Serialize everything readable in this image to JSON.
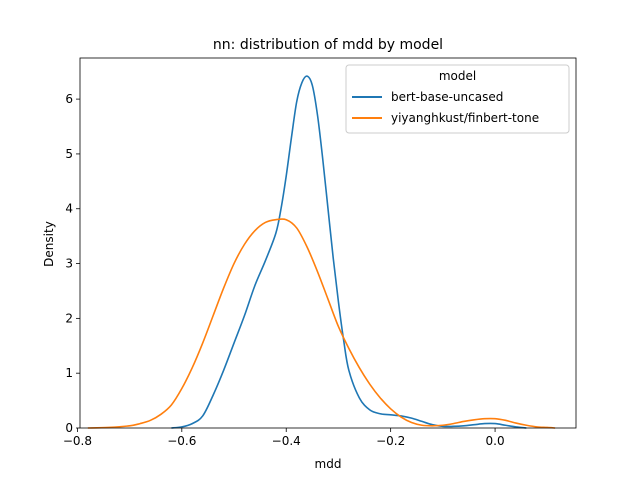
{
  "chart_data": {
    "type": "line",
    "title": "nn: distribution of mdd by model",
    "xlabel": "mdd",
    "ylabel": "Density",
    "xlim": [
      -0.795,
      0.155
    ],
    "ylim": [
      0,
      6.75
    ],
    "xticks": [
      -0.8,
      -0.6,
      -0.4,
      -0.2,
      0.0
    ],
    "xtick_labels": [
      "−0.8",
      "−0.6",
      "−0.4",
      "−0.2",
      "0.0"
    ],
    "yticks": [
      0,
      1,
      2,
      3,
      4,
      5,
      6
    ],
    "ytick_labels": [
      "0",
      "1",
      "2",
      "3",
      "4",
      "5",
      "6"
    ],
    "grid": false,
    "legend": {
      "title": "model",
      "placement": "top-right"
    },
    "series": [
      {
        "name": "bert-base-uncased",
        "color": "#1f77b4",
        "points": [
          [
            -0.62,
            0.0
          ],
          [
            -0.6,
            0.02
          ],
          [
            -0.58,
            0.08
          ],
          [
            -0.56,
            0.22
          ],
          [
            -0.54,
            0.6
          ],
          [
            -0.52,
            1.05
          ],
          [
            -0.5,
            1.55
          ],
          [
            -0.48,
            2.05
          ],
          [
            -0.46,
            2.6
          ],
          [
            -0.44,
            3.05
          ],
          [
            -0.42,
            3.55
          ],
          [
            -0.41,
            4.0
          ],
          [
            -0.4,
            4.6
          ],
          [
            -0.39,
            5.3
          ],
          [
            -0.38,
            5.95
          ],
          [
            -0.37,
            6.3
          ],
          [
            -0.36,
            6.42
          ],
          [
            -0.35,
            6.25
          ],
          [
            -0.34,
            5.7
          ],
          [
            -0.33,
            4.9
          ],
          [
            -0.32,
            4.0
          ],
          [
            -0.31,
            3.1
          ],
          [
            -0.3,
            2.3
          ],
          [
            -0.29,
            1.6
          ],
          [
            -0.28,
            1.05
          ],
          [
            -0.26,
            0.55
          ],
          [
            -0.24,
            0.33
          ],
          [
            -0.22,
            0.26
          ],
          [
            -0.2,
            0.24
          ],
          [
            -0.18,
            0.22
          ],
          [
            -0.16,
            0.18
          ],
          [
            -0.14,
            0.12
          ],
          [
            -0.12,
            0.06
          ],
          [
            -0.1,
            0.03
          ],
          [
            -0.08,
            0.03
          ],
          [
            -0.06,
            0.04
          ],
          [
            -0.04,
            0.06
          ],
          [
            -0.02,
            0.08
          ],
          [
            0.0,
            0.08
          ],
          [
            0.02,
            0.05
          ],
          [
            0.04,
            0.02
          ],
          [
            0.06,
            0.0
          ]
        ]
      },
      {
        "name": "yiyanghkust/finbert-tone",
        "color": "#ff7f0e",
        "points": [
          [
            -0.78,
            0.0
          ],
          [
            -0.74,
            0.01
          ],
          [
            -0.7,
            0.04
          ],
          [
            -0.68,
            0.08
          ],
          [
            -0.66,
            0.14
          ],
          [
            -0.64,
            0.25
          ],
          [
            -0.62,
            0.42
          ],
          [
            -0.6,
            0.72
          ],
          [
            -0.58,
            1.1
          ],
          [
            -0.56,
            1.55
          ],
          [
            -0.54,
            2.05
          ],
          [
            -0.52,
            2.55
          ],
          [
            -0.5,
            3.0
          ],
          [
            -0.48,
            3.35
          ],
          [
            -0.46,
            3.6
          ],
          [
            -0.44,
            3.75
          ],
          [
            -0.42,
            3.8
          ],
          [
            -0.4,
            3.8
          ],
          [
            -0.38,
            3.65
          ],
          [
            -0.36,
            3.3
          ],
          [
            -0.34,
            2.85
          ],
          [
            -0.32,
            2.35
          ],
          [
            -0.3,
            1.85
          ],
          [
            -0.28,
            1.45
          ],
          [
            -0.26,
            1.1
          ],
          [
            -0.24,
            0.8
          ],
          [
            -0.22,
            0.55
          ],
          [
            -0.2,
            0.35
          ],
          [
            -0.18,
            0.2
          ],
          [
            -0.16,
            0.1
          ],
          [
            -0.14,
            0.05
          ],
          [
            -0.12,
            0.04
          ],
          [
            -0.1,
            0.05
          ],
          [
            -0.08,
            0.08
          ],
          [
            -0.06,
            0.12
          ],
          [
            -0.04,
            0.15
          ],
          [
            -0.02,
            0.17
          ],
          [
            0.0,
            0.17
          ],
          [
            0.02,
            0.14
          ],
          [
            0.04,
            0.09
          ],
          [
            0.06,
            0.05
          ],
          [
            0.08,
            0.02
          ],
          [
            0.1,
            0.01
          ],
          [
            0.115,
            0.0
          ]
        ]
      }
    ]
  }
}
